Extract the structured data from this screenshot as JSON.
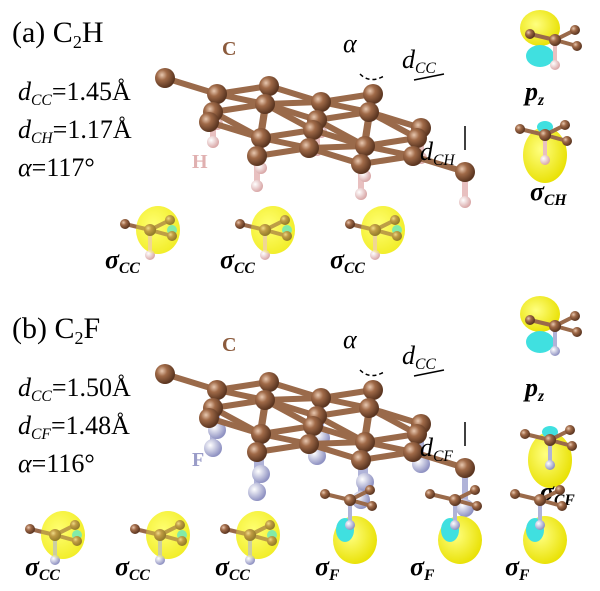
{
  "panels": [
    {
      "tag": "(a)",
      "formula": {
        "base": "C",
        "sub": "2",
        "tail": "H"
      },
      "params": [
        {
          "symbol": "d",
          "sub": "CC",
          "value": "=1.45Å"
        },
        {
          "symbol": "d",
          "sub": "CH",
          "value": "=1.17Å"
        },
        {
          "symbol": "α",
          "value": "=117°"
        }
      ],
      "atom_labels": {
        "carbon": "C",
        "ligand": "H"
      },
      "structure_labels": {
        "angle": "α",
        "bond1": {
          "symbol": "d",
          "sub": "CC"
        },
        "bond2": {
          "symbol": "d",
          "sub": "CH"
        }
      },
      "orbitals": [
        {
          "symbol": "p",
          "sub": "z"
        },
        {
          "symbol": "σ",
          "sub": "CH"
        },
        {
          "symbol": "σ",
          "sub": "CC"
        },
        {
          "symbol": "σ",
          "sub": "CC"
        },
        {
          "symbol": "σ",
          "sub": "CC"
        }
      ]
    },
    {
      "tag": "(b)",
      "formula": {
        "base": "C",
        "sub": "2",
        "tail": "F"
      },
      "params": [
        {
          "symbol": "d",
          "sub": "CC",
          "value": "=1.50Å"
        },
        {
          "symbol": "d",
          "sub": "CF",
          "value": "=1.48Å"
        },
        {
          "symbol": "α",
          "value": "=116°"
        }
      ],
      "atom_labels": {
        "carbon": "C",
        "ligand": "F"
      },
      "structure_labels": {
        "angle": "α",
        "bond1": {
          "symbol": "d",
          "sub": "CC"
        },
        "bond2": {
          "symbol": "d",
          "sub": "CF"
        }
      },
      "orbitals": [
        {
          "symbol": "p",
          "sub": "z"
        },
        {
          "symbol": "σ",
          "sub": "CF"
        },
        {
          "symbol": "σ",
          "sub": "CC"
        },
        {
          "symbol": "σ",
          "sub": "CC"
        },
        {
          "symbol": "σ",
          "sub": "CC"
        },
        {
          "symbol": "σ",
          "sub": "F"
        },
        {
          "symbol": "σ",
          "sub": "F"
        },
        {
          "symbol": "σ",
          "sub": "F"
        }
      ]
    }
  ]
}
